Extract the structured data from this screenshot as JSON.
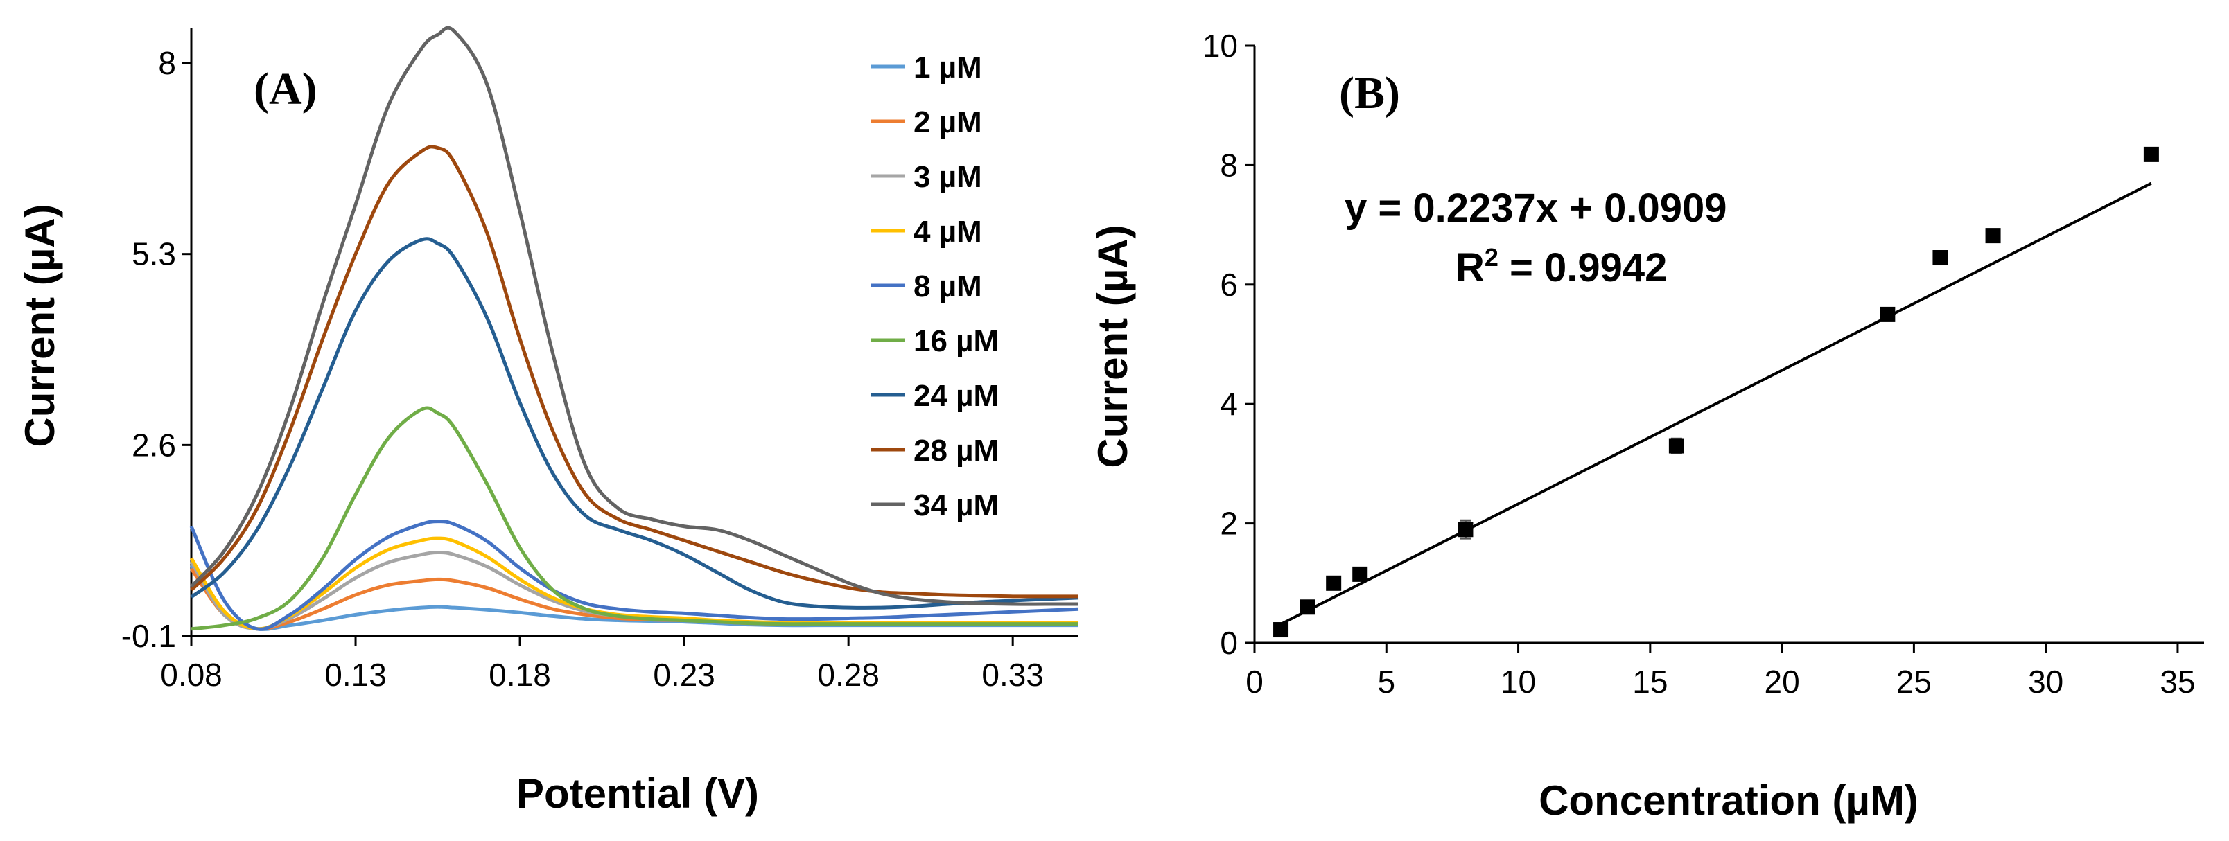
{
  "chart_data": [
    {
      "type": "line",
      "panel_label": "(A)",
      "xlabel": "Potential (V)",
      "ylabel": "Current (µA)",
      "xlim": [
        0.08,
        0.35
      ],
      "ylim": [
        -0.1,
        8.5
      ],
      "x_ticks": [
        0.08,
        0.13,
        0.18,
        0.23,
        0.28,
        0.33
      ],
      "x_tick_labels": [
        "0.08",
        "0.13",
        "0.18",
        "0.23",
        "0.28",
        "0.33"
      ],
      "y_ticks": [
        -0.1,
        2.6,
        5.3,
        8.0
      ],
      "y_tick_labels": [
        "-0.1",
        "2.6",
        "5.3",
        "8"
      ],
      "legend_position": "top-right",
      "x": [
        0.08,
        0.09,
        0.1,
        0.11,
        0.12,
        0.13,
        0.14,
        0.15,
        0.155,
        0.16,
        0.17,
        0.18,
        0.19,
        0.2,
        0.21,
        0.22,
        0.23,
        0.24,
        0.25,
        0.26,
        0.27,
        0.28,
        0.29,
        0.3,
        0.31,
        0.32,
        0.33,
        0.34,
        0.35
      ],
      "series": [
        {
          "name": "1 µM",
          "color": "#5b9bd5",
          "values": [
            0.9,
            0.2,
            0.0,
            0.05,
            0.12,
            0.2,
            0.26,
            0.3,
            0.31,
            0.3,
            0.27,
            0.23,
            0.18,
            0.14,
            0.12,
            0.11,
            0.1,
            0.08,
            0.06,
            0.05,
            0.05,
            0.05,
            0.05,
            0.05,
            0.05,
            0.05,
            0.05,
            0.05,
            0.05
          ]
        },
        {
          "name": "2 µM",
          "color": "#ed7d31",
          "values": [
            0.85,
            0.2,
            0.0,
            0.1,
            0.28,
            0.48,
            0.62,
            0.68,
            0.7,
            0.68,
            0.58,
            0.42,
            0.28,
            0.2,
            0.15,
            0.13,
            0.12,
            0.1,
            0.08,
            0.07,
            0.07,
            0.07,
            0.07,
            0.07,
            0.07,
            0.07,
            0.07,
            0.07,
            0.07
          ]
        },
        {
          "name": "3 µM",
          "color": "#a5a5a5",
          "values": [
            0.95,
            0.2,
            0.0,
            0.15,
            0.42,
            0.72,
            0.94,
            1.05,
            1.08,
            1.05,
            0.88,
            0.62,
            0.4,
            0.25,
            0.18,
            0.15,
            0.13,
            0.11,
            0.09,
            0.08,
            0.08,
            0.08,
            0.08,
            0.08,
            0.08,
            0.08,
            0.08,
            0.08,
            0.08
          ]
        },
        {
          "name": "4 µM",
          "color": "#ffc000",
          "values": [
            1.0,
            0.25,
            0.0,
            0.18,
            0.5,
            0.86,
            1.12,
            1.25,
            1.28,
            1.24,
            1.02,
            0.7,
            0.44,
            0.28,
            0.2,
            0.17,
            0.15,
            0.12,
            0.1,
            0.09,
            0.09,
            0.09,
            0.09,
            0.09,
            0.09,
            0.09,
            0.09,
            0.09,
            0.09
          ]
        },
        {
          "name": "8 µM",
          "color": "#4472c4",
          "values": [
            1.45,
            0.4,
            0.0,
            0.2,
            0.56,
            0.98,
            1.3,
            1.48,
            1.52,
            1.48,
            1.24,
            0.86,
            0.55,
            0.36,
            0.28,
            0.24,
            0.22,
            0.19,
            0.16,
            0.14,
            0.14,
            0.15,
            0.16,
            0.18,
            0.2,
            0.22,
            0.24,
            0.26,
            0.28
          ]
        },
        {
          "name": "16 µM",
          "color": "#70ad47",
          "values": [
            0.0,
            0.05,
            0.15,
            0.4,
            1.0,
            1.9,
            2.7,
            3.1,
            3.05,
            2.85,
            2.05,
            1.15,
            0.55,
            0.28,
            0.18,
            0.14,
            0.12,
            0.1,
            0.08,
            0.07,
            0.07,
            0.07,
            0.07,
            0.07,
            0.07,
            0.07,
            0.07,
            0.07,
            0.07
          ]
        },
        {
          "name": "24 µM",
          "color": "#255e91",
          "values": [
            0.45,
            0.8,
            1.4,
            2.3,
            3.4,
            4.5,
            5.2,
            5.5,
            5.45,
            5.25,
            4.4,
            3.2,
            2.2,
            1.6,
            1.4,
            1.25,
            1.05,
            0.8,
            0.55,
            0.38,
            0.32,
            0.3,
            0.3,
            0.32,
            0.35,
            0.38,
            0.4,
            0.42,
            0.44
          ]
        },
        {
          "name": "28 µM",
          "color": "#9e480e",
          "values": [
            0.55,
            1.0,
            1.7,
            2.8,
            4.1,
            5.3,
            6.3,
            6.75,
            6.8,
            6.6,
            5.6,
            4.1,
            2.8,
            1.9,
            1.55,
            1.4,
            1.25,
            1.1,
            0.95,
            0.8,
            0.68,
            0.58,
            0.52,
            0.5,
            0.48,
            0.47,
            0.46,
            0.46,
            0.46
          ]
        },
        {
          "name": "34 µM",
          "color": "#636363",
          "values": [
            0.6,
            1.1,
            1.9,
            3.1,
            4.6,
            6.0,
            7.4,
            8.2,
            8.4,
            8.45,
            7.7,
            5.9,
            3.9,
            2.3,
            1.7,
            1.55,
            1.45,
            1.4,
            1.25,
            1.05,
            0.85,
            0.65,
            0.5,
            0.42,
            0.38,
            0.36,
            0.35,
            0.35,
            0.35
          ]
        }
      ]
    },
    {
      "type": "scatter",
      "panel_label": "(B)",
      "xlabel": "Concentration (µM)",
      "ylabel": "Current (µA)",
      "xlim": [
        0,
        36
      ],
      "ylim": [
        0,
        10
      ],
      "x_ticks": [
        0,
        5,
        10,
        15,
        20,
        25,
        30,
        35
      ],
      "x_tick_labels": [
        "0",
        "5",
        "10",
        "15",
        "20",
        "25",
        "30",
        "35"
      ],
      "y_ticks": [
        0,
        2,
        4,
        6,
        8,
        10
      ],
      "y_tick_labels": [
        "0",
        "2",
        "4",
        "6",
        "8",
        "10"
      ],
      "points": [
        {
          "x": 1,
          "y": 0.22,
          "err": 0.05
        },
        {
          "x": 2,
          "y": 0.6,
          "err": 0.06
        },
        {
          "x": 3,
          "y": 1.0,
          "err": 0.07
        },
        {
          "x": 4,
          "y": 1.15,
          "err": 0.07
        },
        {
          "x": 8,
          "y": 1.9,
          "err": 0.15
        },
        {
          "x": 16,
          "y": 3.3,
          "err": 0.12
        },
        {
          "x": 24,
          "y": 5.5,
          "err": 0.08
        },
        {
          "x": 26,
          "y": 6.45,
          "err": 0.08
        },
        {
          "x": 28,
          "y": 6.82,
          "err": 0.08
        },
        {
          "x": 34,
          "y": 8.18,
          "err": 0.08
        }
      ],
      "fit": {
        "slope": 0.2237,
        "intercept": 0.0909,
        "x_range": [
          1,
          34
        ]
      },
      "equation": "y = 0.2237x + 0.0909",
      "r2_prefix": "R",
      "r2_sup": "2",
      "r2_suffix": " = 0.9942"
    }
  ]
}
